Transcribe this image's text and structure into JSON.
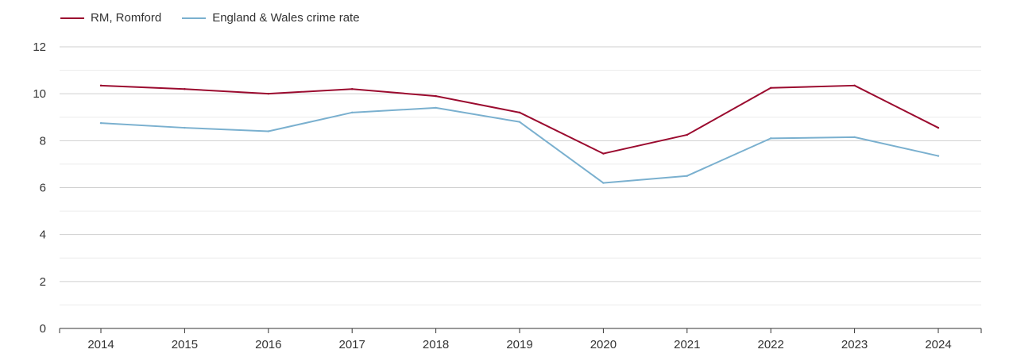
{
  "chart_data": {
    "type": "line",
    "title": "",
    "xlabel": "",
    "ylabel": "",
    "x": [
      2014,
      2015,
      2016,
      2017,
      2018,
      2019,
      2020,
      2021,
      2022,
      2023,
      2024
    ],
    "ylim": [
      0,
      12
    ],
    "yticks": [
      0,
      2,
      4,
      6,
      8,
      10,
      12
    ],
    "grid": true,
    "legend_position": "top-left",
    "series": [
      {
        "name": "RM, Romford",
        "color": "#9b0b2f",
        "values": [
          10.35,
          10.2,
          10.0,
          10.2,
          9.9,
          9.2,
          7.45,
          8.25,
          10.25,
          10.35,
          8.55
        ]
      },
      {
        "name": "England & Wales crime rate",
        "color": "#7ab0cf",
        "values": [
          8.75,
          8.55,
          8.4,
          9.2,
          9.4,
          8.8,
          6.2,
          6.5,
          8.1,
          8.15,
          7.35
        ]
      }
    ]
  }
}
